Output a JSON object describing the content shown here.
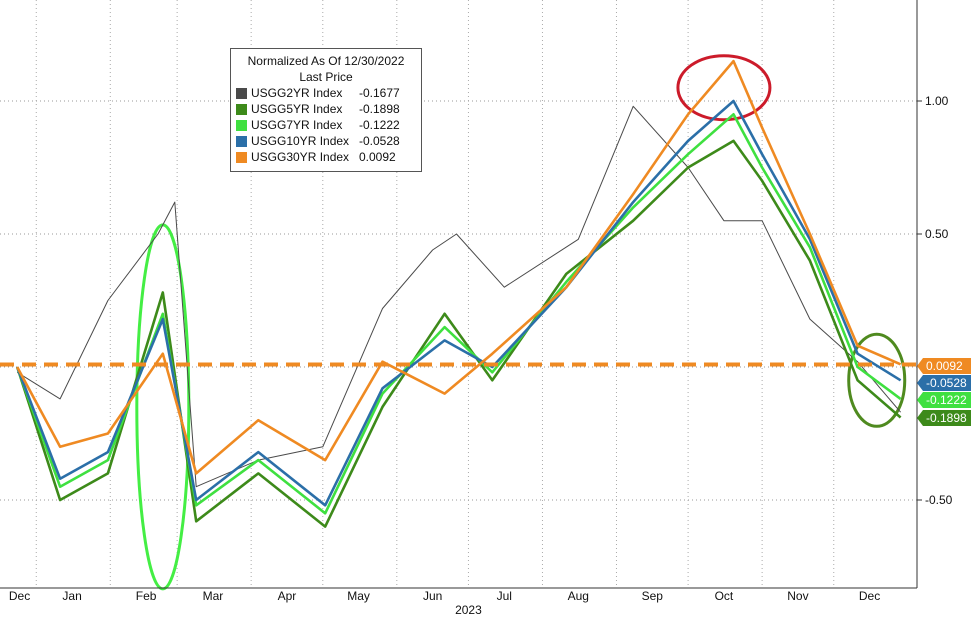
{
  "chart_data": {
    "type": "line",
    "title": "Normalized As Of 12/30/2022",
    "subtitle": "Last Price",
    "x_ticks": [
      "Dec",
      "Jan",
      "Feb",
      "Mar",
      "Apr",
      "May",
      "Jun",
      "Jul",
      "Aug",
      "Sep",
      "Oct",
      "Nov",
      "Dec"
    ],
    "x_year_label": "2023",
    "y_ticks": [
      "1.00",
      "0.50",
      "-0.50"
    ],
    "ylim": [
      -0.75,
      1.25
    ],
    "grid": true,
    "legend_position": "top-left",
    "reference_line": {
      "value": 0.0092,
      "color": "#ef8a22",
      "style": "dashed"
    },
    "series": [
      {
        "name": "USGG2YR Index",
        "last": "-0.1677",
        "color": "#4a4a4a",
        "x": [
          "2022-12-23",
          "2023-01-10",
          "2023-01-30",
          "2023-02-20",
          "2023-02-27",
          "2023-03-08",
          "2023-04-03",
          "2023-04-30",
          "2023-05-25",
          "2023-06-15",
          "2023-06-25",
          "2023-07-15",
          "2023-08-15",
          "2023-09-07",
          "2023-09-30",
          "2023-10-15",
          "2023-10-31",
          "2023-11-20",
          "2023-12-10",
          "2023-12-28"
        ],
        "y": [
          -0.02,
          -0.12,
          0.25,
          0.5,
          0.62,
          -0.45,
          -0.35,
          -0.3,
          0.22,
          0.44,
          0.5,
          0.3,
          0.48,
          0.98,
          0.75,
          0.55,
          0.55,
          0.18,
          0.02,
          -0.17
        ]
      },
      {
        "name": "USGG5YR Index",
        "last": "-0.1898",
        "color": "#3d8a1a",
        "x": [
          "2022-12-23",
          "2023-01-10",
          "2023-01-30",
          "2023-02-22",
          "2023-03-08",
          "2023-04-03",
          "2023-05-01",
          "2023-05-25",
          "2023-06-20",
          "2023-07-10",
          "2023-08-10",
          "2023-09-07",
          "2023-09-30",
          "2023-10-19",
          "2023-10-31",
          "2023-11-20",
          "2023-12-10",
          "2023-12-28"
        ],
        "y": [
          0.0,
          -0.5,
          -0.4,
          0.28,
          -0.58,
          -0.4,
          -0.6,
          -0.15,
          0.2,
          -0.05,
          0.35,
          0.55,
          0.75,
          0.85,
          0.7,
          0.4,
          -0.05,
          -0.19
        ]
      },
      {
        "name": "USGG7YR Index",
        "last": "-0.1222",
        "color": "#3fe040",
        "x": [
          "2022-12-23",
          "2023-01-10",
          "2023-01-30",
          "2023-02-22",
          "2023-03-08",
          "2023-04-03",
          "2023-05-01",
          "2023-05-25",
          "2023-06-20",
          "2023-07-10",
          "2023-08-10",
          "2023-09-07",
          "2023-09-30",
          "2023-10-19",
          "2023-10-31",
          "2023-11-20",
          "2023-12-10",
          "2023-12-28"
        ],
        "y": [
          0.0,
          -0.45,
          -0.35,
          0.2,
          -0.52,
          -0.35,
          -0.55,
          -0.1,
          0.15,
          -0.02,
          0.32,
          0.6,
          0.8,
          0.95,
          0.75,
          0.45,
          0.0,
          -0.12
        ]
      },
      {
        "name": "USGG10YR Index",
        "last": "-0.0528",
        "color": "#2b6fa8",
        "x": [
          "2022-12-23",
          "2023-01-10",
          "2023-01-30",
          "2023-02-22",
          "2023-03-08",
          "2023-04-03",
          "2023-05-01",
          "2023-05-25",
          "2023-06-20",
          "2023-07-10",
          "2023-08-10",
          "2023-09-07",
          "2023-09-30",
          "2023-10-19",
          "2023-10-31",
          "2023-11-20",
          "2023-12-10",
          "2023-12-28"
        ],
        "y": [
          0.0,
          -0.42,
          -0.32,
          0.18,
          -0.5,
          -0.32,
          -0.52,
          -0.08,
          0.1,
          0.0,
          0.3,
          0.62,
          0.85,
          1.0,
          0.8,
          0.48,
          0.05,
          -0.05
        ]
      },
      {
        "name": "USGG30YR Index",
        "last": "0.0092",
        "color": "#ef8a22",
        "x": [
          "2022-12-23",
          "2023-01-10",
          "2023-01-30",
          "2023-02-22",
          "2023-03-08",
          "2023-04-03",
          "2023-05-01",
          "2023-05-25",
          "2023-06-20",
          "2023-07-10",
          "2023-08-10",
          "2023-09-07",
          "2023-09-30",
          "2023-10-19",
          "2023-10-31",
          "2023-11-20",
          "2023-12-10",
          "2023-12-28"
        ],
        "y": [
          0.0,
          -0.3,
          -0.25,
          0.05,
          -0.4,
          -0.2,
          -0.35,
          0.02,
          -0.1,
          0.05,
          0.3,
          0.65,
          0.95,
          1.15,
          0.9,
          0.5,
          0.08,
          0.01
        ]
      }
    ],
    "annotations": [
      {
        "shape": "ellipse",
        "color": "#44ee44",
        "x": "2023-02-22",
        "y": -0.15
      },
      {
        "shape": "ellipse",
        "color": "#cc1b2a",
        "x": "2023-10-15",
        "y": 1.05
      },
      {
        "shape": "ellipse",
        "color": "#4f8a1f",
        "x": "2023-12-18",
        "y": -0.05
      }
    ]
  }
}
